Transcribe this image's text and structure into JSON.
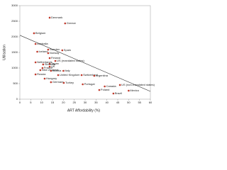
{
  "chart_data": {
    "type": "scatter",
    "x_label": "ART Affordability (%)",
    "y_label": "Utilisation",
    "xlim": [
      0,
      60
    ],
    "ylim": [
      0,
      3000
    ],
    "xticks": [
      0,
      5,
      10,
      15,
      20,
      25,
      30,
      35,
      40,
      45,
      50,
      55,
      60
    ],
    "yticks": [
      0,
      500,
      1000,
      1500,
      2000,
      2500,
      3000
    ],
    "color": "#c0392b",
    "line_color": "#333333",
    "trend": {
      "x": [
        0,
        60
      ],
      "y": [
        2050,
        250
      ]
    },
    "points": [
      {
        "name": "Denmark",
        "x": 13.7,
        "y": 2614
      },
      {
        "name": "Greece",
        "x": 20.8,
        "y": 2432
      },
      {
        "name": "Belgium",
        "x": 6.5,
        "y": 2114
      },
      {
        "name": "Australia",
        "x": 7.2,
        "y": 1773
      },
      {
        "name": "Sweden",
        "x": 13,
        "y": 1590
      },
      {
        "name": "Spain",
        "x": 19.5,
        "y": 1568
      },
      {
        "name": "Iceland",
        "x": 8,
        "y": 1523
      },
      {
        "name": "Norway",
        "x": 13,
        "y": 1477
      },
      {
        "name": "Finland",
        "x": 13.7,
        "y": 1318
      },
      {
        "name": "US (mandated states)",
        "x": 16.3,
        "y": 1227
      },
      {
        "name": "Netherlands",
        "x": 7.2,
        "y": 1182
      },
      {
        "name": "Japan",
        "x": 13.7,
        "y": 1136
      },
      {
        "name": "Slovenia",
        "x": 10.7,
        "y": 1114
      },
      {
        "name": "UK",
        "x": 13.7,
        "y": 1045
      },
      {
        "name": "France",
        "x": 10.4,
        "y": 1000
      },
      {
        "name": "New Zealand",
        "x": 9.4,
        "y": 932
      },
      {
        "name": "Austria",
        "x": 14.3,
        "y": 909
      },
      {
        "name": "Italy",
        "x": 20,
        "y": 909
      },
      {
        "name": "Russia",
        "x": 7.2,
        "y": 795
      },
      {
        "name": "United Kingdom",
        "x": 17.6,
        "y": 773
      },
      {
        "name": "Switzerland",
        "x": 28.4,
        "y": 773
      },
      {
        "name": "Argentina",
        "x": 34.2,
        "y": 750
      },
      {
        "name": "Hungary",
        "x": 11.4,
        "y": 659
      },
      {
        "name": "Germany",
        "x": 14.3,
        "y": 545
      },
      {
        "name": "Turkey",
        "x": 20.2,
        "y": 523
      },
      {
        "name": "Portugal",
        "x": 28.9,
        "y": 477
      },
      {
        "name": "US (non-mandated states)",
        "x": 46,
        "y": 455
      },
      {
        "name": "Canada",
        "x": 39,
        "y": 409
      },
      {
        "name": "Poland",
        "x": 36.5,
        "y": 295
      },
      {
        "name": "Mexico",
        "x": 50,
        "y": 273
      },
      {
        "name": "Brazil",
        "x": 43,
        "y": 182
      }
    ]
  }
}
